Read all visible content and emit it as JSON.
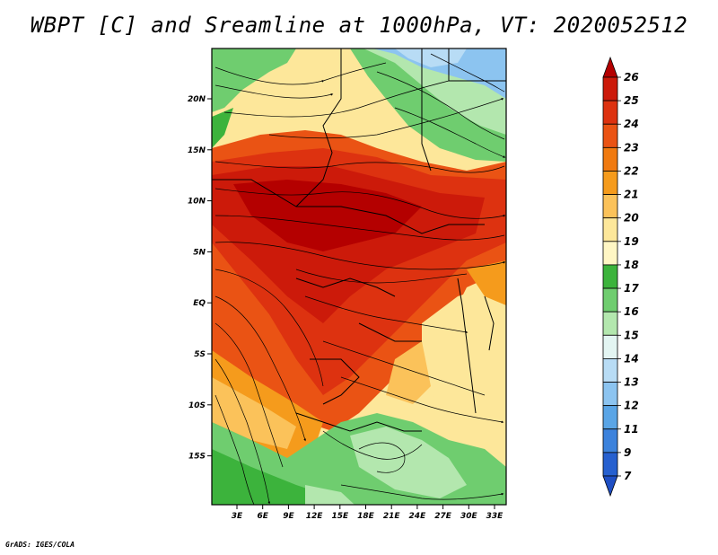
{
  "title": "WBPT [C] and Sreamline at 1000hPa, VT: 2020052512",
  "credit": "GrADS: IGES/COLA",
  "map": {
    "lat_ticks": [
      "20N",
      "15N",
      "10N",
      "5N",
      "EQ",
      "5S",
      "10S",
      "15S"
    ],
    "lon_ticks": [
      "3E",
      "6E",
      "9E",
      "12E",
      "15E",
      "18E",
      "21E",
      "24E",
      "27E",
      "30E",
      "33E"
    ]
  },
  "colorbar": {
    "labels": [
      "26",
      "25",
      "24",
      "23",
      "22",
      "21",
      "20",
      "19",
      "18",
      "17",
      "16",
      "15",
      "14",
      "13",
      "12",
      "11",
      "9",
      "7"
    ],
    "colors": [
      "#b40000",
      "#cc1a0a",
      "#dd3210",
      "#ea5314",
      "#f07a10",
      "#f59b1c",
      "#fbc25a",
      "#fde79a",
      "#fff6c4",
      "#3cb33c",
      "#6fcd6f",
      "#b3e7ae",
      "#e3f5f2",
      "#b8dcf5",
      "#8cc4f0",
      "#5aa5e6",
      "#3c82dc",
      "#2660cf",
      "#1f4fc4"
    ]
  }
}
